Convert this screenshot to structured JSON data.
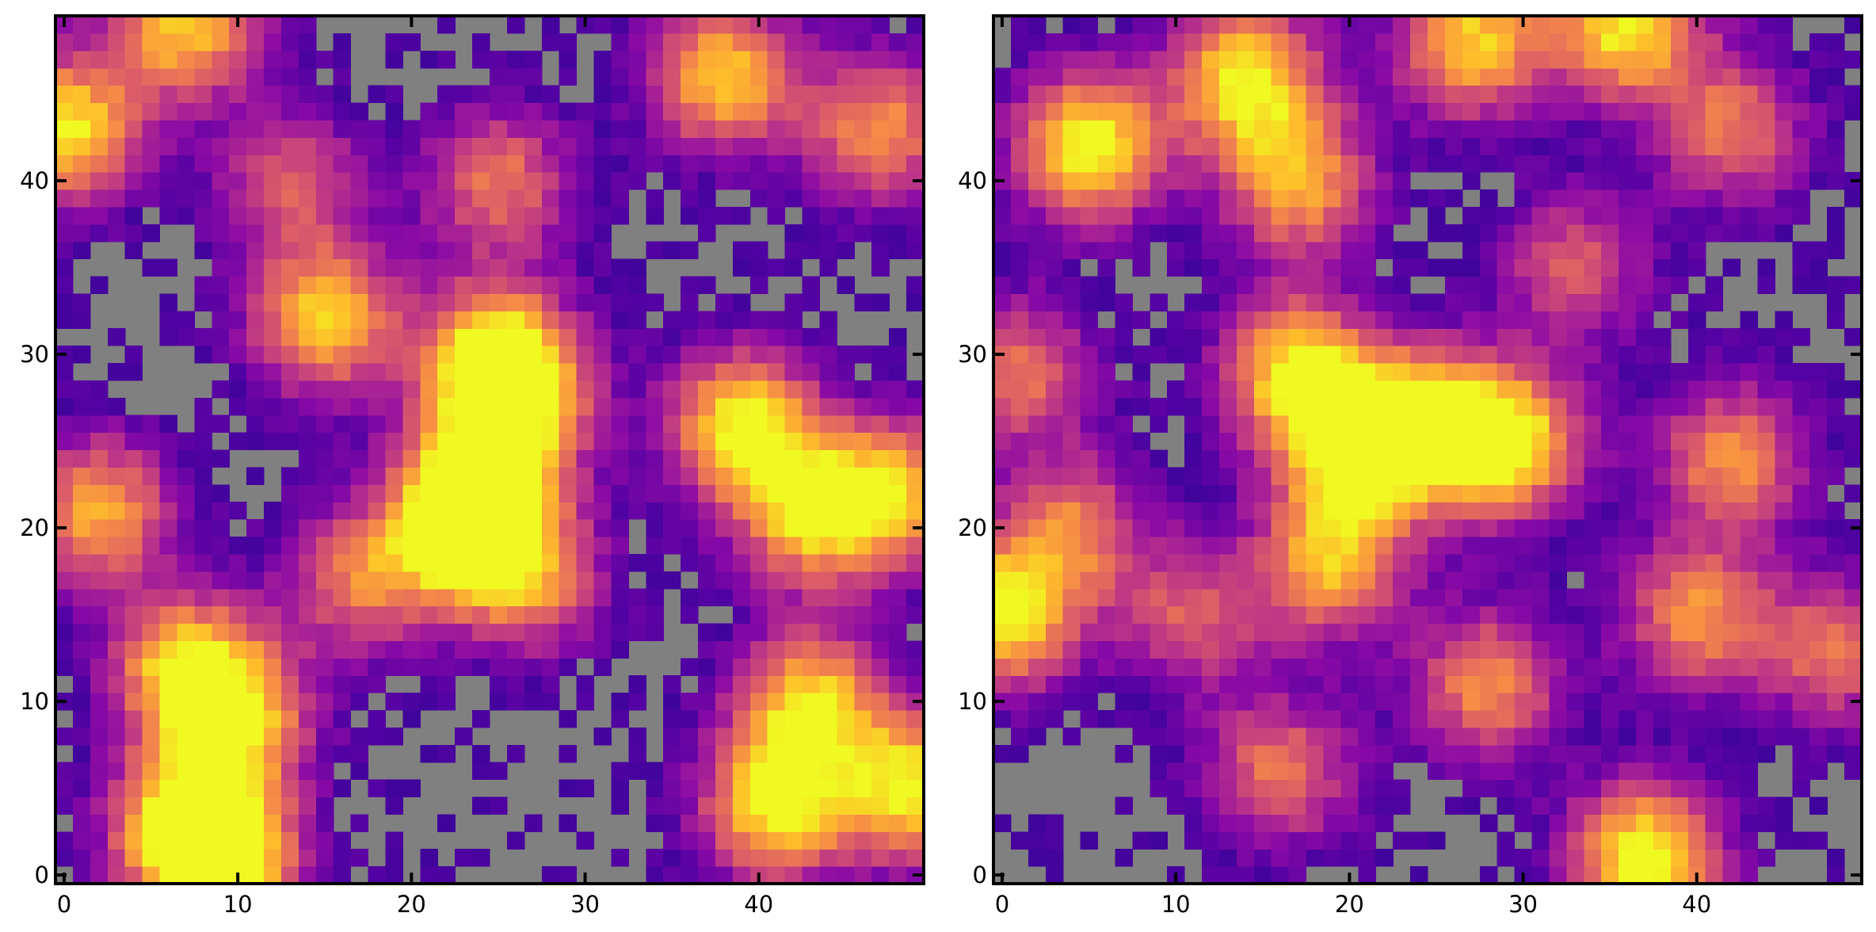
{
  "figure": {
    "background": "#ffffff",
    "zero_color": "#808080",
    "colormap": "plasma"
  },
  "chart_data": [
    {
      "type": "heatmap",
      "title": "",
      "xlabel": "",
      "ylabel": "",
      "xlim": [
        -0.5,
        49.5
      ],
      "ylim": [
        -0.5,
        49.5
      ],
      "xticks": [
        0,
        10,
        20,
        30,
        40
      ],
      "yticks": [
        0,
        10,
        20,
        30,
        40
      ],
      "xtick_labels": [
        "0",
        "10",
        "20",
        "30",
        "40"
      ],
      "ytick_labels": [
        "0",
        "10",
        "20",
        "30",
        "40"
      ],
      "grid": false,
      "colorbar": false,
      "value_range": [
        0,
        12
      ],
      "grid_size": [
        50,
        50
      ],
      "hotspots": [
        {
          "x": 7,
          "y": 3,
          "v": 10
        },
        {
          "x": 9,
          "y": 1,
          "v": 12
        },
        {
          "x": 7,
          "y": 12,
          "v": 10
        },
        {
          "x": 10,
          "y": 9,
          "v": 9
        },
        {
          "x": 7,
          "y": 49,
          "v": 10
        },
        {
          "x": 0,
          "y": 43,
          "v": 11
        },
        {
          "x": 2,
          "y": 21,
          "v": 9
        },
        {
          "x": 23,
          "y": 20,
          "v": 12
        },
        {
          "x": 25,
          "y": 30,
          "v": 11
        },
        {
          "x": 26,
          "y": 27,
          "v": 8
        },
        {
          "x": 24,
          "y": 23,
          "v": 8
        },
        {
          "x": 39,
          "y": 26,
          "v": 11
        },
        {
          "x": 43,
          "y": 21,
          "v": 10
        },
        {
          "x": 38,
          "y": 46,
          "v": 10
        },
        {
          "x": 15,
          "y": 32,
          "v": 10
        },
        {
          "x": 41,
          "y": 4,
          "v": 11
        },
        {
          "x": 49,
          "y": 5,
          "v": 11
        },
        {
          "x": 43,
          "y": 10,
          "v": 10
        },
        {
          "x": 48,
          "y": 22,
          "v": 9
        },
        {
          "x": 25,
          "y": 40,
          "v": 7
        },
        {
          "x": 13,
          "y": 40,
          "v": 6
        },
        {
          "x": 27,
          "y": 17,
          "v": 7
        },
        {
          "x": 17,
          "y": 17,
          "v": 7
        },
        {
          "x": 47,
          "y": 43,
          "v": 8
        }
      ],
      "threshold": 1.2
    },
    {
      "type": "heatmap",
      "title": "",
      "xlabel": "",
      "ylabel": "",
      "xlim": [
        -0.5,
        49.5
      ],
      "ylim": [
        -0.5,
        49.5
      ],
      "xticks": [
        0,
        10,
        20,
        30,
        40
      ],
      "yticks": [
        0,
        10,
        20,
        30,
        40
      ],
      "xtick_labels": [
        "0",
        "10",
        "20",
        "30",
        "40"
      ],
      "ytick_labels": [
        "0",
        "10",
        "20",
        "30",
        "40"
      ],
      "grid": false,
      "colorbar": false,
      "value_range": [
        0,
        12
      ],
      "grid_size": [
        50,
        50
      ],
      "hotspots": [
        {
          "x": 5,
          "y": 42,
          "v": 12
        },
        {
          "x": 14,
          "y": 46,
          "v": 11
        },
        {
          "x": 17,
          "y": 29,
          "v": 11
        },
        {
          "x": 24,
          "y": 26,
          "v": 11
        },
        {
          "x": 29,
          "y": 25,
          "v": 12
        },
        {
          "x": 20,
          "y": 24,
          "v": 8
        },
        {
          "x": 0,
          "y": 15,
          "v": 11
        },
        {
          "x": 37,
          "y": 1,
          "v": 12
        },
        {
          "x": 36,
          "y": 49,
          "v": 11
        },
        {
          "x": 27,
          "y": 48,
          "v": 10
        },
        {
          "x": 19,
          "y": 18,
          "v": 9
        },
        {
          "x": 28,
          "y": 11,
          "v": 8
        },
        {
          "x": 40,
          "y": 15,
          "v": 8
        },
        {
          "x": 42,
          "y": 24,
          "v": 8
        },
        {
          "x": 16,
          "y": 6,
          "v": 7
        },
        {
          "x": 17,
          "y": 40,
          "v": 9
        },
        {
          "x": 1,
          "y": 29,
          "v": 7
        },
        {
          "x": 48,
          "y": 13,
          "v": 7
        },
        {
          "x": 4,
          "y": 20,
          "v": 7
        },
        {
          "x": 11,
          "y": 15,
          "v": 6
        },
        {
          "x": 42,
          "y": 43,
          "v": 7
        },
        {
          "x": 33,
          "y": 35,
          "v": 6
        }
      ],
      "threshold": 1.2
    }
  ]
}
